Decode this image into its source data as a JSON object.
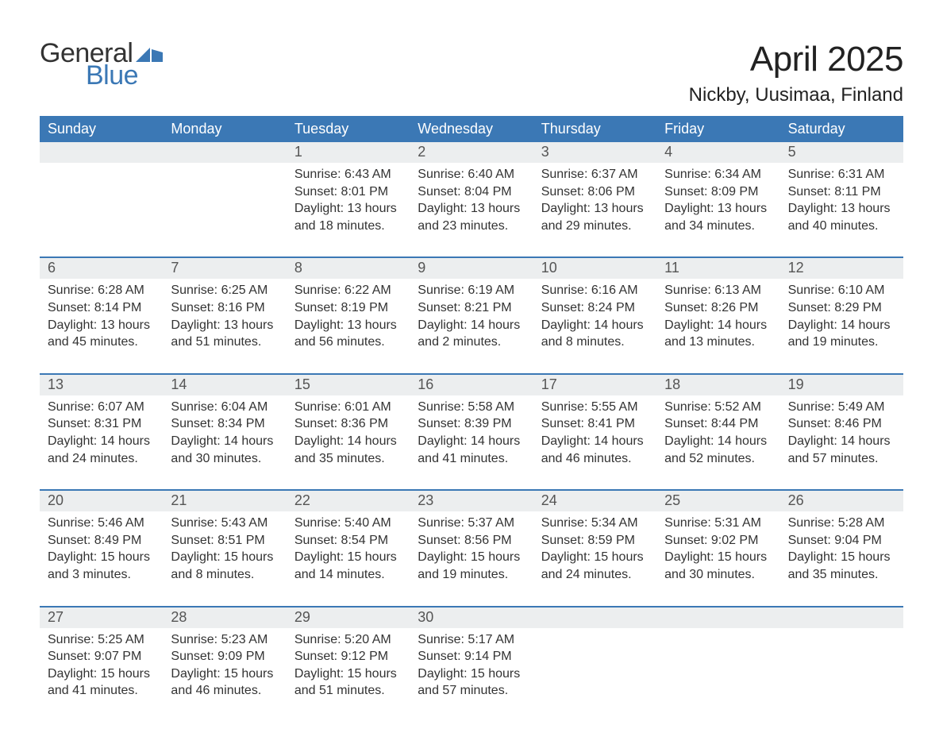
{
  "logo": {
    "text1": "General",
    "text2": "Blue",
    "flag_color": "#3b78b5"
  },
  "title": "April 2025",
  "location": "Nickby, Uusimaa, Finland",
  "colors": {
    "header_bg": "#3b78b5",
    "header_text": "#ffffff",
    "daynum_bg": "#eceeef",
    "week_border": "#3b78b5",
    "body_bg": "#ffffff",
    "text": "#333333"
  },
  "days_of_week": [
    "Sunday",
    "Monday",
    "Tuesday",
    "Wednesday",
    "Thursday",
    "Friday",
    "Saturday"
  ],
  "weeks": [
    [
      null,
      null,
      {
        "n": "1",
        "sunrise": "6:43 AM",
        "sunset": "8:01 PM",
        "dl1": "Daylight: 13 hours",
        "dl2": "and 18 minutes."
      },
      {
        "n": "2",
        "sunrise": "6:40 AM",
        "sunset": "8:04 PM",
        "dl1": "Daylight: 13 hours",
        "dl2": "and 23 minutes."
      },
      {
        "n": "3",
        "sunrise": "6:37 AM",
        "sunset": "8:06 PM",
        "dl1": "Daylight: 13 hours",
        "dl2": "and 29 minutes."
      },
      {
        "n": "4",
        "sunrise": "6:34 AM",
        "sunset": "8:09 PM",
        "dl1": "Daylight: 13 hours",
        "dl2": "and 34 minutes."
      },
      {
        "n": "5",
        "sunrise": "6:31 AM",
        "sunset": "8:11 PM",
        "dl1": "Daylight: 13 hours",
        "dl2": "and 40 minutes."
      }
    ],
    [
      {
        "n": "6",
        "sunrise": "6:28 AM",
        "sunset": "8:14 PM",
        "dl1": "Daylight: 13 hours",
        "dl2": "and 45 minutes."
      },
      {
        "n": "7",
        "sunrise": "6:25 AM",
        "sunset": "8:16 PM",
        "dl1": "Daylight: 13 hours",
        "dl2": "and 51 minutes."
      },
      {
        "n": "8",
        "sunrise": "6:22 AM",
        "sunset": "8:19 PM",
        "dl1": "Daylight: 13 hours",
        "dl2": "and 56 minutes."
      },
      {
        "n": "9",
        "sunrise": "6:19 AM",
        "sunset": "8:21 PM",
        "dl1": "Daylight: 14 hours",
        "dl2": "and 2 minutes."
      },
      {
        "n": "10",
        "sunrise": "6:16 AM",
        "sunset": "8:24 PM",
        "dl1": "Daylight: 14 hours",
        "dl2": "and 8 minutes."
      },
      {
        "n": "11",
        "sunrise": "6:13 AM",
        "sunset": "8:26 PM",
        "dl1": "Daylight: 14 hours",
        "dl2": "and 13 minutes."
      },
      {
        "n": "12",
        "sunrise": "6:10 AM",
        "sunset": "8:29 PM",
        "dl1": "Daylight: 14 hours",
        "dl2": "and 19 minutes."
      }
    ],
    [
      {
        "n": "13",
        "sunrise": "6:07 AM",
        "sunset": "8:31 PM",
        "dl1": "Daylight: 14 hours",
        "dl2": "and 24 minutes."
      },
      {
        "n": "14",
        "sunrise": "6:04 AM",
        "sunset": "8:34 PM",
        "dl1": "Daylight: 14 hours",
        "dl2": "and 30 minutes."
      },
      {
        "n": "15",
        "sunrise": "6:01 AM",
        "sunset": "8:36 PM",
        "dl1": "Daylight: 14 hours",
        "dl2": "and 35 minutes."
      },
      {
        "n": "16",
        "sunrise": "5:58 AM",
        "sunset": "8:39 PM",
        "dl1": "Daylight: 14 hours",
        "dl2": "and 41 minutes."
      },
      {
        "n": "17",
        "sunrise": "5:55 AM",
        "sunset": "8:41 PM",
        "dl1": "Daylight: 14 hours",
        "dl2": "and 46 minutes."
      },
      {
        "n": "18",
        "sunrise": "5:52 AM",
        "sunset": "8:44 PM",
        "dl1": "Daylight: 14 hours",
        "dl2": "and 52 minutes."
      },
      {
        "n": "19",
        "sunrise": "5:49 AM",
        "sunset": "8:46 PM",
        "dl1": "Daylight: 14 hours",
        "dl2": "and 57 minutes."
      }
    ],
    [
      {
        "n": "20",
        "sunrise": "5:46 AM",
        "sunset": "8:49 PM",
        "dl1": "Daylight: 15 hours",
        "dl2": "and 3 minutes."
      },
      {
        "n": "21",
        "sunrise": "5:43 AM",
        "sunset": "8:51 PM",
        "dl1": "Daylight: 15 hours",
        "dl2": "and 8 minutes."
      },
      {
        "n": "22",
        "sunrise": "5:40 AM",
        "sunset": "8:54 PM",
        "dl1": "Daylight: 15 hours",
        "dl2": "and 14 minutes."
      },
      {
        "n": "23",
        "sunrise": "5:37 AM",
        "sunset": "8:56 PM",
        "dl1": "Daylight: 15 hours",
        "dl2": "and 19 minutes."
      },
      {
        "n": "24",
        "sunrise": "5:34 AM",
        "sunset": "8:59 PM",
        "dl1": "Daylight: 15 hours",
        "dl2": "and 24 minutes."
      },
      {
        "n": "25",
        "sunrise": "5:31 AM",
        "sunset": "9:02 PM",
        "dl1": "Daylight: 15 hours",
        "dl2": "and 30 minutes."
      },
      {
        "n": "26",
        "sunrise": "5:28 AM",
        "sunset": "9:04 PM",
        "dl1": "Daylight: 15 hours",
        "dl2": "and 35 minutes."
      }
    ],
    [
      {
        "n": "27",
        "sunrise": "5:25 AM",
        "sunset": "9:07 PM",
        "dl1": "Daylight: 15 hours",
        "dl2": "and 41 minutes."
      },
      {
        "n": "28",
        "sunrise": "5:23 AM",
        "sunset": "9:09 PM",
        "dl1": "Daylight: 15 hours",
        "dl2": "and 46 minutes."
      },
      {
        "n": "29",
        "sunrise": "5:20 AM",
        "sunset": "9:12 PM",
        "dl1": "Daylight: 15 hours",
        "dl2": "and 51 minutes."
      },
      {
        "n": "30",
        "sunrise": "5:17 AM",
        "sunset": "9:14 PM",
        "dl1": "Daylight: 15 hours",
        "dl2": "and 57 minutes."
      },
      null,
      null,
      null
    ]
  ],
  "labels": {
    "sunrise": "Sunrise: ",
    "sunset": "Sunset: "
  }
}
